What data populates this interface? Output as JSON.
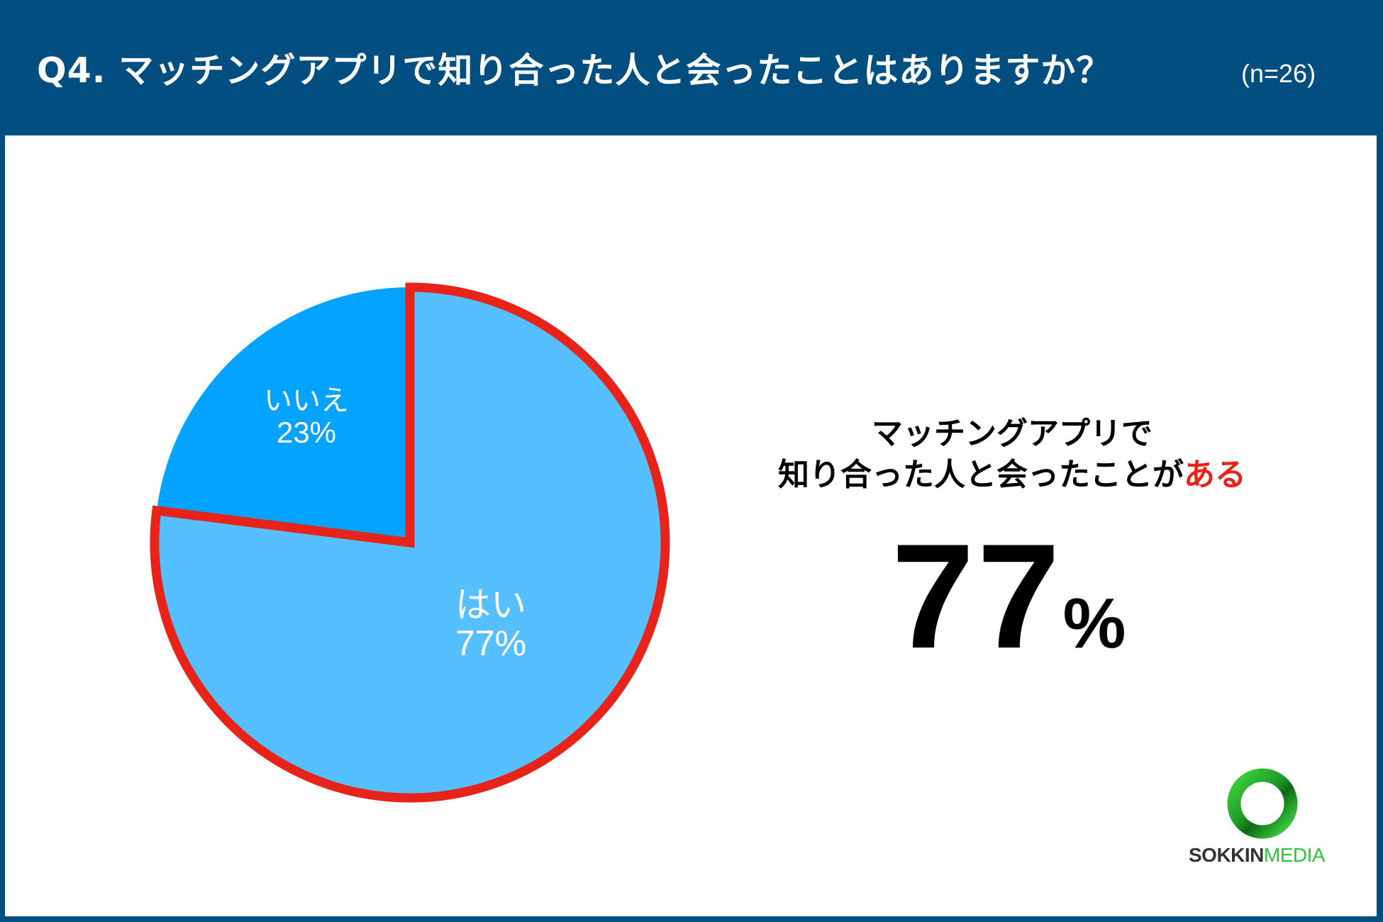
{
  "header": {
    "title": "Q4. マッチングアプリで知り合った人と会ったことはありますか？",
    "sample_size": "(n=26)"
  },
  "chart_data": {
    "type": "pie",
    "title": "Q4. マッチングアプリで知り合った人と会ったことはありますか？",
    "subtitle": "(n=26)",
    "categories": [
      "はい",
      "いいえ"
    ],
    "values": [
      77,
      23
    ],
    "unit": "%",
    "colors": [
      "#55bfff",
      "#04a3ff"
    ],
    "highlight": {
      "category": "はい",
      "outline_color": "#e8231a"
    },
    "start_angle": "12 o'clock",
    "direction": "clockwise",
    "legend": "none",
    "data_labels": [
      {
        "name": "はい",
        "value": "77%"
      },
      {
        "name": "いいえ",
        "value": "23%"
      }
    ]
  },
  "pie": {
    "yes": {
      "name": "はい",
      "pct": "77%"
    },
    "no": {
      "name": "いいえ",
      "pct": "23%"
    }
  },
  "summary": {
    "line1": "マッチングアプリで",
    "line2_main": "知り合った人と会ったことが",
    "line2_accent": "ある",
    "big_value": "77",
    "big_unit": "%"
  },
  "logo": {
    "brand_dark": "SOKKIN",
    "brand_green": "MEDIA"
  },
  "colors": {
    "frame": "#034e80",
    "yes_slice": "#55bfff",
    "no_slice": "#04a3ff",
    "accent_red": "#e8231a",
    "logo_green": "#2ec23c"
  }
}
